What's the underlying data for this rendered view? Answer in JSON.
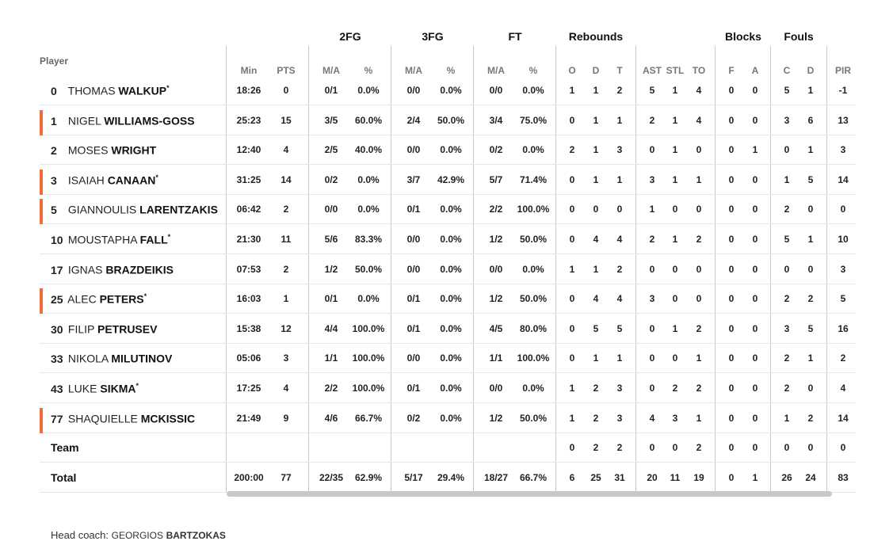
{
  "groups": [
    "2FG",
    "3FG",
    "FT",
    "Rebounds",
    "Blocks",
    "Fouls"
  ],
  "player_header": "Player",
  "columns": [
    "Min",
    "PTS",
    "M/A",
    "%",
    "M/A",
    "%",
    "M/A",
    "%",
    "O",
    "D",
    "T",
    "AST",
    "STL",
    "TO",
    "F",
    "A",
    "C",
    "D",
    "PIR"
  ],
  "players": [
    {
      "num": "0",
      "first": "THOMAS",
      "last": "WALKUP",
      "star": "*",
      "marked": false,
      "stats": [
        "18:26",
        "0",
        "0/1",
        "0.0%",
        "0/0",
        "0.0%",
        "0/0",
        "0.0%",
        "1",
        "1",
        "2",
        "5",
        "1",
        "4",
        "0",
        "0",
        "5",
        "1",
        "-1"
      ]
    },
    {
      "num": "1",
      "first": "NIGEL",
      "last": "WILLIAMS-GOSS",
      "star": "",
      "marked": true,
      "stats": [
        "25:23",
        "15",
        "3/5",
        "60.0%",
        "2/4",
        "50.0%",
        "3/4",
        "75.0%",
        "0",
        "1",
        "1",
        "2",
        "1",
        "4",
        "0",
        "0",
        "3",
        "6",
        "13"
      ]
    },
    {
      "num": "2",
      "first": "MOSES",
      "last": "WRIGHT",
      "star": "",
      "marked": false,
      "stats": [
        "12:40",
        "4",
        "2/5",
        "40.0%",
        "0/0",
        "0.0%",
        "0/2",
        "0.0%",
        "2",
        "1",
        "3",
        "0",
        "1",
        "0",
        "0",
        "1",
        "0",
        "1",
        "3"
      ]
    },
    {
      "num": "3",
      "first": "ISAIAH",
      "last": "CANAAN",
      "star": "*",
      "marked": true,
      "stats": [
        "31:25",
        "14",
        "0/2",
        "0.0%",
        "3/7",
        "42.9%",
        "5/7",
        "71.4%",
        "0",
        "1",
        "1",
        "3",
        "1",
        "1",
        "0",
        "0",
        "1",
        "5",
        "14"
      ]
    },
    {
      "num": "5",
      "first": "GIANNOULIS",
      "last": "LARENTZAKIS",
      "star": "",
      "marked": true,
      "stats": [
        "06:42",
        "2",
        "0/0",
        "0.0%",
        "0/1",
        "0.0%",
        "2/2",
        "100.0%",
        "0",
        "0",
        "0",
        "1",
        "0",
        "0",
        "0",
        "0",
        "2",
        "0",
        "0"
      ]
    },
    {
      "num": "10",
      "first": "MOUSTAPHA",
      "last": "FALL",
      "star": "*",
      "marked": false,
      "stats": [
        "21:30",
        "11",
        "5/6",
        "83.3%",
        "0/0",
        "0.0%",
        "1/2",
        "50.0%",
        "0",
        "4",
        "4",
        "2",
        "1",
        "2",
        "0",
        "0",
        "5",
        "1",
        "10"
      ]
    },
    {
      "num": "17",
      "first": "IGNAS",
      "last": "BRAZDEIKIS",
      "star": "",
      "marked": false,
      "stats": [
        "07:53",
        "2",
        "1/2",
        "50.0%",
        "0/0",
        "0.0%",
        "0/0",
        "0.0%",
        "1",
        "1",
        "2",
        "0",
        "0",
        "0",
        "0",
        "0",
        "0",
        "0",
        "3"
      ]
    },
    {
      "num": "25",
      "first": "ALEC",
      "last": "PETERS",
      "star": "*",
      "marked": true,
      "stats": [
        "16:03",
        "1",
        "0/1",
        "0.0%",
        "0/1",
        "0.0%",
        "1/2",
        "50.0%",
        "0",
        "4",
        "4",
        "3",
        "0",
        "0",
        "0",
        "0",
        "2",
        "2",
        "5"
      ]
    },
    {
      "num": "30",
      "first": "FILIP",
      "last": "PETRUSEV",
      "star": "",
      "marked": false,
      "stats": [
        "15:38",
        "12",
        "4/4",
        "100.0%",
        "0/1",
        "0.0%",
        "4/5",
        "80.0%",
        "0",
        "5",
        "5",
        "0",
        "1",
        "2",
        "0",
        "0",
        "3",
        "5",
        "16"
      ]
    },
    {
      "num": "33",
      "first": "NIKOLA",
      "last": "MILUTINOV",
      "star": "",
      "marked": false,
      "stats": [
        "05:06",
        "3",
        "1/1",
        "100.0%",
        "0/0",
        "0.0%",
        "1/1",
        "100.0%",
        "0",
        "1",
        "1",
        "0",
        "0",
        "1",
        "0",
        "0",
        "2",
        "1",
        "2"
      ]
    },
    {
      "num": "43",
      "first": "LUKE",
      "last": "SIKMA",
      "star": "*",
      "marked": false,
      "stats": [
        "17:25",
        "4",
        "2/2",
        "100.0%",
        "0/1",
        "0.0%",
        "0/0",
        "0.0%",
        "1",
        "2",
        "3",
        "0",
        "2",
        "2",
        "0",
        "0",
        "2",
        "0",
        "4"
      ]
    },
    {
      "num": "77",
      "first": "SHAQUIELLE",
      "last": "MCKISSIC",
      "star": "",
      "marked": true,
      "stats": [
        "21:49",
        "9",
        "4/6",
        "66.7%",
        "0/2",
        "0.0%",
        "1/2",
        "50.0%",
        "1",
        "2",
        "3",
        "4",
        "3",
        "1",
        "0",
        "0",
        "1",
        "2",
        "14"
      ]
    }
  ],
  "team": {
    "label": "Team",
    "stats": [
      "",
      "",
      "",
      "",
      "",
      "",
      "",
      "",
      "0",
      "2",
      "2",
      "0",
      "0",
      "2",
      "0",
      "0",
      "0",
      "0",
      "0"
    ]
  },
  "total": {
    "label": "Total",
    "stats": [
      "200:00",
      "77",
      "22/35",
      "62.9%",
      "5/17",
      "29.4%",
      "18/27",
      "66.7%",
      "6",
      "25",
      "31",
      "20",
      "11",
      "19",
      "0",
      "1",
      "26",
      "24",
      "83"
    ]
  },
  "coach": {
    "prefix": "Head coach:",
    "first": "GEORGIOS",
    "last": "BARTZOKAS"
  }
}
